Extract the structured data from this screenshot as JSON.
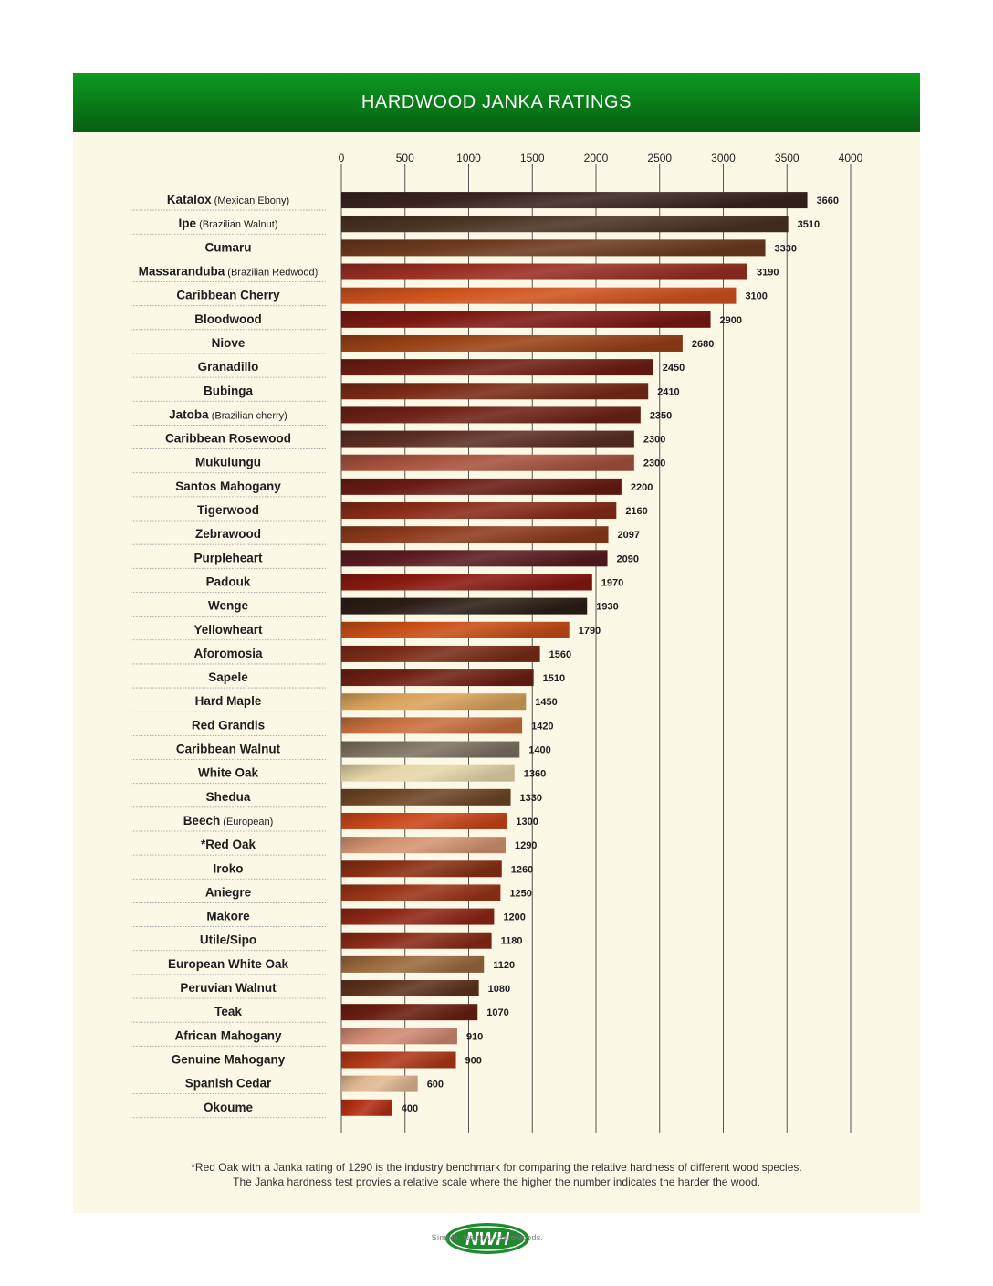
{
  "chart_data": {
    "type": "bar",
    "orientation": "horizontal",
    "title": "HARDWOOD JANKA RATINGS",
    "xlim": [
      0,
      4000
    ],
    "xticks": [
      0,
      500,
      1000,
      1500,
      2000,
      2500,
      3000,
      3500,
      4000
    ],
    "grid": true,
    "categories": [
      {
        "name": "Katalox",
        "note": "(Mexican Ebony)",
        "value": 3660,
        "color": "#3b2420"
      },
      {
        "name": "Ipe",
        "note": "(Brazilian Walnut)",
        "value": 3510,
        "color": "#4a3424"
      },
      {
        "name": "Cumaru",
        "note": "",
        "value": 3330,
        "color": "#6e3a1f"
      },
      {
        "name": "Massaranduba",
        "note": "(Brazilian Redwood)",
        "value": 3190,
        "color": "#9a2e22"
      },
      {
        "name": "Caribbean Cherry",
        "note": "",
        "value": 3100,
        "color": "#d0531e"
      },
      {
        "name": "Bloodwood",
        "note": "",
        "value": 2900,
        "color": "#7d1a12"
      },
      {
        "name": "Niove",
        "note": "",
        "value": 2680,
        "color": "#9a4216"
      },
      {
        "name": "Granadillo",
        "note": "",
        "value": 2450,
        "color": "#6f1f12"
      },
      {
        "name": "Bubinga",
        "note": "",
        "value": 2410,
        "color": "#7a2a16"
      },
      {
        "name": "Jatoba",
        "note": "(Brazilian cherry)",
        "value": 2350,
        "color": "#6e2216"
      },
      {
        "name": "Caribbean Rosewood",
        "note": "",
        "value": 2300,
        "color": "#5c2e24"
      },
      {
        "name": "Mukulungu",
        "note": "",
        "value": 2300,
        "color": "#a8523e"
      },
      {
        "name": "Santos Mahogany",
        "note": "",
        "value": 2200,
        "color": "#6a1c14"
      },
      {
        "name": "Tigerwood",
        "note": "",
        "value": 2160,
        "color": "#8a2c18"
      },
      {
        "name": "Zebrawood",
        "note": "",
        "value": 2097,
        "color": "#8e3a1c"
      },
      {
        "name": "Purpleheart",
        "note": "",
        "value": 2090,
        "color": "#5a1c22"
      },
      {
        "name": "Padouk",
        "note": "",
        "value": 1970,
        "color": "#8a1a10"
      },
      {
        "name": "Wenge",
        "note": "",
        "value": 1930,
        "color": "#2c1e16"
      },
      {
        "name": "Yellowheart",
        "note": "",
        "value": 1790,
        "color": "#c84e16"
      },
      {
        "name": "Aforomosia",
        "note": "",
        "value": 1560,
        "color": "#7a2c18"
      },
      {
        "name": "Sapele",
        "note": "",
        "value": 1510,
        "color": "#6e2014"
      },
      {
        "name": "Hard Maple",
        "note": "",
        "value": 1450,
        "color": "#d9a25a"
      },
      {
        "name": "Red Grandis",
        "note": "",
        "value": 1420,
        "color": "#c8703e"
      },
      {
        "name": "Caribbean Walnut",
        "note": "",
        "value": 1400,
        "color": "#7c7262"
      },
      {
        "name": "White Oak",
        "note": "",
        "value": 1360,
        "color": "#e6d6a8"
      },
      {
        "name": "Shedua",
        "note": "",
        "value": 1330,
        "color": "#6e4626"
      },
      {
        "name": "Beech",
        "note": "(European)",
        "value": 1300,
        "color": "#c9461a"
      },
      {
        "name": "*Red Oak",
        "note": "",
        "value": 1290,
        "color": "#d49472"
      },
      {
        "name": "Iroko",
        "note": "",
        "value": 1260,
        "color": "#8a3014"
      },
      {
        "name": "Aniegre",
        "note": "",
        "value": 1250,
        "color": "#9a3416"
      },
      {
        "name": "Makore",
        "note": "",
        "value": 1200,
        "color": "#8e2616"
      },
      {
        "name": "Utile/Sipo",
        "note": "",
        "value": 1180,
        "color": "#8a2a16"
      },
      {
        "name": "European White Oak",
        "note": "",
        "value": 1120,
        "color": "#9a6a3e"
      },
      {
        "name": "Peruvian Walnut",
        "note": "",
        "value": 1080,
        "color": "#5e321e"
      },
      {
        "name": "Teak",
        "note": "",
        "value": 1070,
        "color": "#6a1e12"
      },
      {
        "name": "African Mahogany",
        "note": "",
        "value": 910,
        "color": "#d08a72"
      },
      {
        "name": "Genuine Mahogany",
        "note": "",
        "value": 900,
        "color": "#b03818"
      },
      {
        "name": "Spanish Cedar",
        "note": "",
        "value": 600,
        "color": "#e0b892"
      },
      {
        "name": "Okoume",
        "note": "",
        "value": 400,
        "color": "#b42e14"
      }
    ]
  },
  "footnote": {
    "line1": "*Red Oak with a Janka rating of 1290 is the industry benchmark for comparing the relative hardness of different wood species.",
    "line2": "The Janka hardness test provies a relative scale where the higher the number indicates the harder the wood."
  },
  "logo": {
    "text": "NWH",
    "tagline": "Simple. Natural. Hardwoods.",
    "color": "#1f8a2e"
  }
}
